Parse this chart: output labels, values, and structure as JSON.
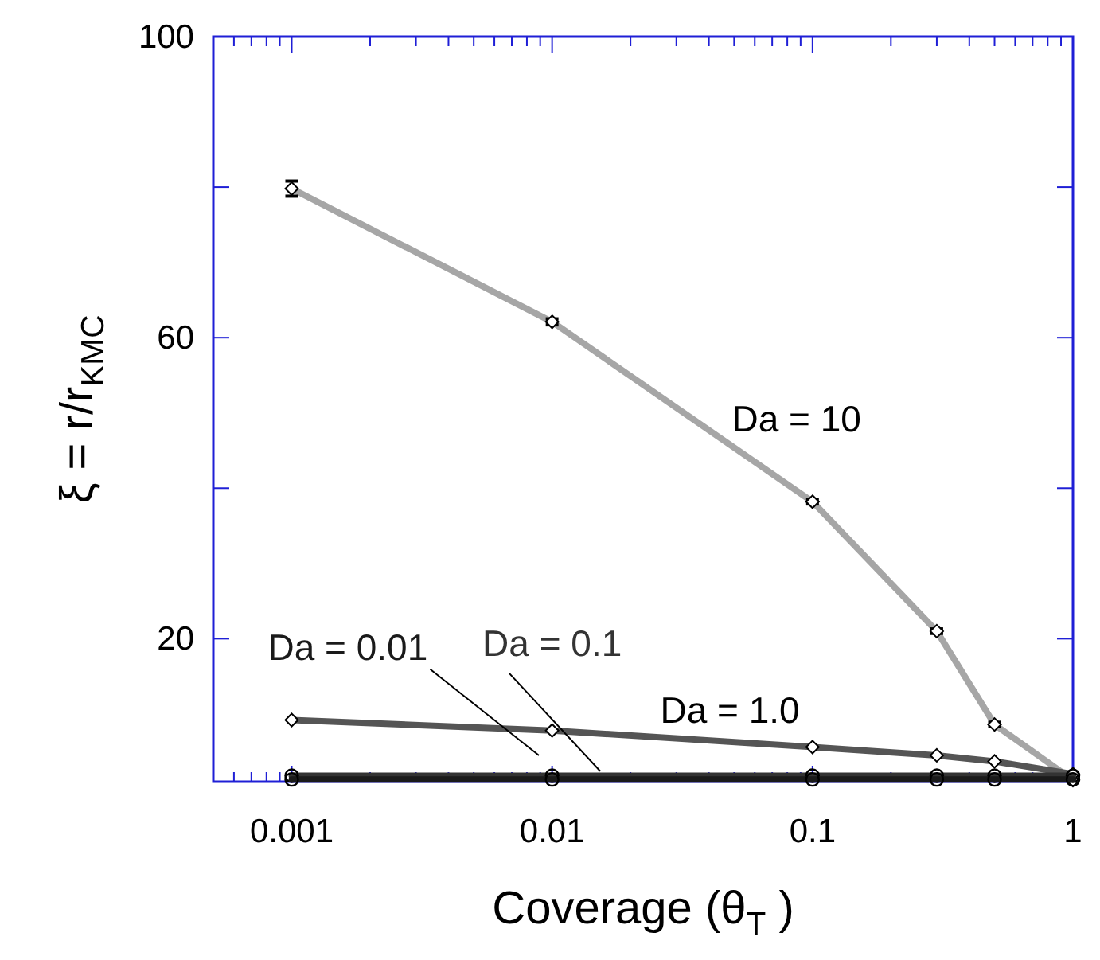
{
  "chart_data": {
    "type": "line",
    "xlabel": "Coverage (θ$_{T}$)",
    "ylabel": "ξ = r/r$_{KMC}$",
    "log": "x",
    "x": [
      0.001,
      0.01,
      0.1,
      0.3,
      0.5,
      1
    ],
    "xlim": [
      0.0005,
      1
    ],
    "xticks": [
      0.001,
      0.01,
      0.1,
      1
    ],
    "ylim": [
      1,
      100
    ],
    "yticks": [
      20,
      {
        "value": 40,
        "label": null
      },
      60,
      {
        "value": 80,
        "label": null
      },
      100
    ],
    "grid": false,
    "line_style": "solid",
    "series": [
      {
        "name": "Da = 10",
        "color": "#a6a6a6",
        "marker": "diamond",
        "values": [
          79.8,
          62.1,
          38.2,
          21,
          8.6,
          1.2
        ],
        "errors": [
          1,
          0.4,
          0.3,
          0.3,
          0.3,
          null
        ]
      },
      {
        "name": "Da = 1.0",
        "color": "#555555",
        "marker": "diamond",
        "values": [
          9.2,
          7.8,
          5.6,
          4.5,
          3.7,
          2
        ]
      },
      {
        "name": "Da = 0.1",
        "color": "#333333",
        "marker": "circle",
        "values": [
          1.8,
          1.8,
          1.8,
          1.8,
          1.8,
          1.8
        ]
      },
      {
        "name": "Da = 0.01",
        "color": "#1a1a1a",
        "marker": "circle",
        "values": [
          1.3,
          1.3,
          1.3,
          1.3,
          1.3,
          1.3
        ]
      }
    ]
  }
}
